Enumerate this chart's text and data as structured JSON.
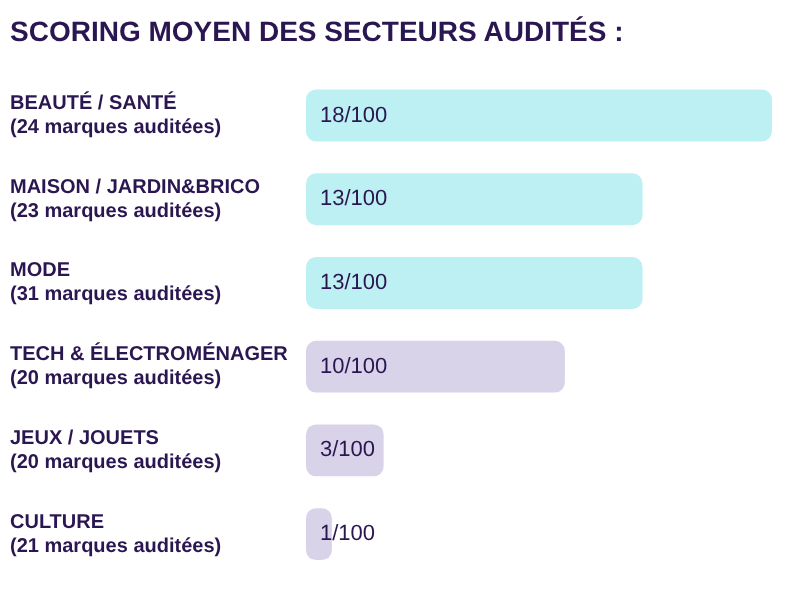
{
  "chart_data": {
    "type": "bar",
    "orientation": "horizontal",
    "title": "SCORING MOYEN DES SECTEURS AUDITÉS :",
    "categories": [
      "BEAUTÉ / SANTÉ\n(24 marques auditées)",
      "MAISON / JARDIN&BRICO\n(23 marques auditées)",
      "MODE\n(31 marques auditées)",
      "TECH & ÉLECTROMÉNAGER\n(20 marques auditées)",
      "JEUX / JOUETS\n(20 marques auditées)",
      "CULTURE\n(21 marques auditées)"
    ],
    "values": [
      18,
      13,
      13,
      10,
      3,
      1
    ],
    "value_labels": [
      "18/100",
      "13/100",
      "13/100",
      "10/100",
      "3/100",
      "1/100"
    ],
    "colors": [
      "#bdf0f2",
      "#bdf0f2",
      "#bdf0f2",
      "#d9d3ea",
      "#d9d3ea",
      "#d9d3ea"
    ],
    "grid": false,
    "legend": false
  }
}
